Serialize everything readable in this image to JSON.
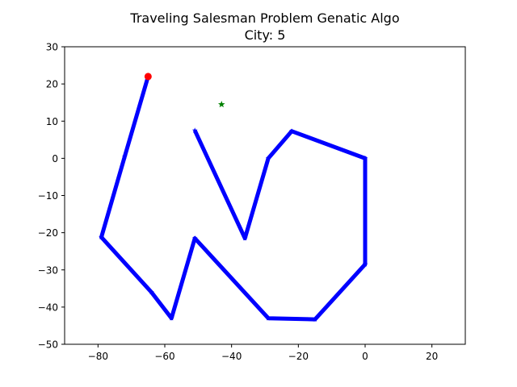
{
  "chart_data": {
    "type": "line",
    "title": "Traveling Salesman Problem Genatic Algo",
    "subtitle": "City: 5",
    "xlabel": "",
    "ylabel": "",
    "xlim": [
      -90,
      30
    ],
    "ylim": [
      -50,
      30
    ],
    "x_ticks": [
      -80,
      -60,
      -40,
      -20,
      0,
      20
    ],
    "y_ticks": [
      30,
      20,
      10,
      0,
      -10,
      -20,
      -30,
      -40,
      -50
    ],
    "x_tick_labels": [
      "−80",
      "−60",
      "−40",
      "−20",
      "0",
      "20"
    ],
    "y_tick_labels": [
      "30",
      "20",
      "10",
      "0",
      "−10",
      "−20",
      "−30",
      "−40",
      "−50"
    ],
    "grid": false,
    "series": [
      {
        "style": "route",
        "color": "#0000ff",
        "marker": "star",
        "points": [
          [
            -51,
            7.5
          ],
          [
            -36,
            -21.5
          ],
          [
            -29,
            0
          ],
          [
            -22,
            7.3
          ],
          [
            0,
            0
          ],
          [
            0,
            -28.5
          ],
          [
            -15,
            -43.3
          ],
          [
            -29,
            -43
          ],
          [
            -51,
            -21.5
          ],
          [
            -58,
            -43
          ],
          [
            -64,
            -36
          ],
          [
            -79,
            -21.2
          ],
          [
            -72,
            0.5
          ],
          [
            -65,
            22
          ]
        ]
      },
      {
        "style": "start-point",
        "color": "#ff0000",
        "marker": "circle",
        "points": [
          [
            -65,
            22
          ]
        ]
      },
      {
        "style": "current-city",
        "color": "#008000",
        "marker": "star",
        "points": [
          [
            -43,
            14.5
          ]
        ]
      }
    ]
  }
}
